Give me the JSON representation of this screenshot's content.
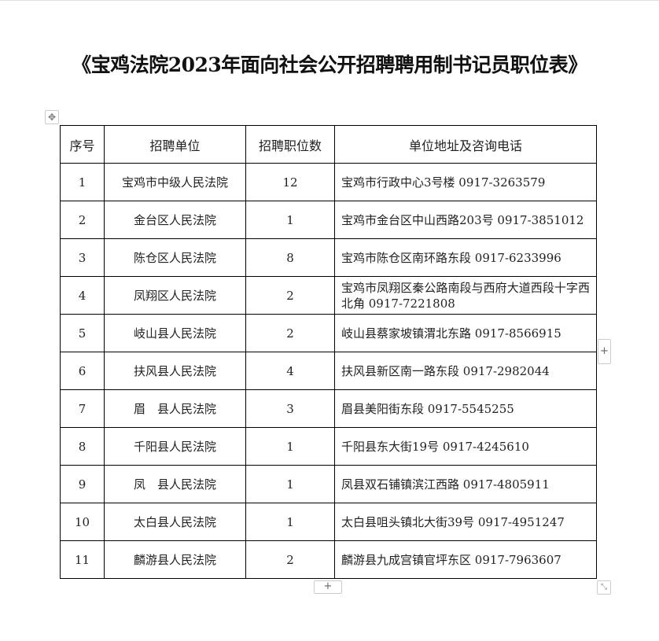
{
  "title": "《宝鸡法院2023年面向社会公开招聘聘用制书记员职位表》",
  "table": {
    "headers": [
      "序号",
      "招聘单位",
      "招聘职位数",
      "单位地址及咨询电话"
    ],
    "rows": [
      [
        "1",
        "宝鸡市中级人民法院",
        "12",
        "宝鸡市行政中心3号楼 0917-3263579"
      ],
      [
        "2",
        "金台区人民法院",
        "1",
        "宝鸡市金台区中山西路203号 0917-3851012"
      ],
      [
        "3",
        "陈仓区人民法院",
        "8",
        "宝鸡市陈仓区南环路东段 0917-6233996"
      ],
      [
        "4",
        "凤翔区人民法院",
        "2",
        "宝鸡市凤翔区秦公路南段与西府大道西段十字西北角 0917-7221808"
      ],
      [
        "5",
        "岐山县人民法院",
        "2",
        "岐山县蔡家坡镇渭北东路 0917-8566915"
      ],
      [
        "6",
        "扶风县人民法院",
        "4",
        "扶风县新区南一路东段 0917-2982044"
      ],
      [
        "7",
        "眉　县人民法院",
        "3",
        "眉县美阳街东段 0917-5545255"
      ],
      [
        "8",
        "千阳县人民法院",
        "1",
        "千阳县东大街19号 0917-4245610"
      ],
      [
        "9",
        "凤　县人民法院",
        "1",
        "凤县双石铺镇滨江西路 0917-4805911"
      ],
      [
        "10",
        "太白县人民法院",
        "1",
        "太白县咀头镇北大街39号 0917-4951247"
      ],
      [
        "11",
        "麟游县人民法院",
        "2",
        "麟游县九成宫镇官坪东区 0917-7963607"
      ]
    ]
  },
  "controls": {
    "move_icon": "✥",
    "add_row": "+",
    "add_col": "+",
    "resize_icon": "⤡"
  }
}
